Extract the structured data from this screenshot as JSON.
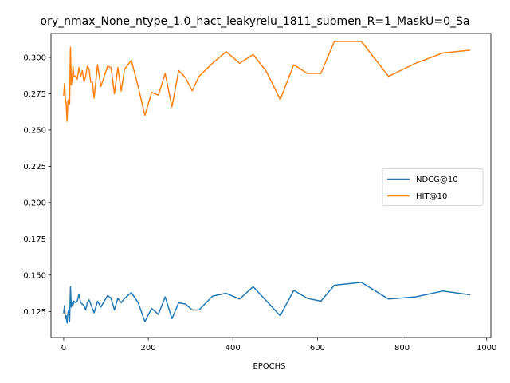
{
  "chart_data": {
    "type": "line",
    "title": "ory_nmax_None_ntype_1.0_hact_leakyrelu_1811_submen_R=1_MaskU=0_Sa",
    "xlabel": "EPOCHS",
    "ylabel": "",
    "xlim": [
      -30,
      1010
    ],
    "ylim": [
      0.107,
      0.3165
    ],
    "xticks": [
      0,
      200,
      400,
      600,
      800,
      1000
    ],
    "yticks": [
      0.125,
      0.15,
      0.175,
      0.2,
      0.225,
      0.25,
      0.275,
      0.3
    ],
    "legend_position": "center-right",
    "grid": false,
    "series": [
      {
        "name": "NDCG@10",
        "color": "#1f77b4",
        "x": [
          0,
          2,
          4,
          6,
          8,
          10,
          12,
          14,
          16,
          18,
          20,
          22,
          24,
          28,
          32,
          36,
          40,
          44,
          48,
          52,
          56,
          60,
          64,
          68,
          72,
          80,
          88,
          96,
          104,
          112,
          120,
          128,
          136,
          144,
          160,
          176,
          192,
          208,
          224,
          240,
          256,
          272,
          288,
          304,
          320,
          352,
          384,
          416,
          448,
          480,
          512,
          544,
          576,
          608,
          640,
          704,
          768,
          832,
          896,
          960
        ],
        "y": [
          0.124,
          0.129,
          0.12,
          0.122,
          0.117,
          0.124,
          0.126,
          0.118,
          0.142,
          0.128,
          0.131,
          0.129,
          0.132,
          0.131,
          0.132,
          0.137,
          0.131,
          0.13,
          0.129,
          0.126,
          0.131,
          0.133,
          0.13,
          0.127,
          0.124,
          0.132,
          0.128,
          0.132,
          0.136,
          0.134,
          0.126,
          0.134,
          0.131,
          0.134,
          0.138,
          0.131,
          0.118,
          0.127,
          0.123,
          0.135,
          0.12,
          0.131,
          0.13,
          0.126,
          0.126,
          0.1355,
          0.1375,
          0.1335,
          0.142,
          0.132,
          0.122,
          0.1395,
          0.134,
          0.132,
          0.143,
          0.145,
          0.1335,
          0.135,
          0.139,
          0.1365
        ]
      },
      {
        "name": "HIT@10",
        "color": "#ff7f0e",
        "x": [
          0,
          2,
          4,
          6,
          8,
          10,
          12,
          14,
          16,
          18,
          20,
          22,
          24,
          28,
          32,
          36,
          40,
          44,
          48,
          52,
          56,
          60,
          64,
          68,
          72,
          80,
          88,
          96,
          104,
          112,
          120,
          128,
          136,
          144,
          160,
          176,
          192,
          208,
          224,
          240,
          256,
          272,
          288,
          304,
          320,
          352,
          384,
          416,
          448,
          480,
          512,
          544,
          576,
          608,
          640,
          704,
          768,
          832,
          896,
          960
        ],
        "y": [
          0.274,
          0.282,
          0.272,
          0.268,
          0.256,
          0.27,
          0.271,
          0.268,
          0.307,
          0.281,
          0.285,
          0.294,
          0.287,
          0.287,
          0.285,
          0.293,
          0.287,
          0.291,
          0.283,
          0.287,
          0.294,
          0.292,
          0.283,
          0.283,
          0.272,
          0.295,
          0.28,
          0.287,
          0.294,
          0.293,
          0.275,
          0.293,
          0.277,
          0.292,
          0.298,
          0.28,
          0.26,
          0.276,
          0.274,
          0.289,
          0.266,
          0.291,
          0.286,
          0.277,
          0.287,
          0.296,
          0.304,
          0.296,
          0.302,
          0.29,
          0.271,
          0.295,
          0.289,
          0.289,
          0.311,
          0.311,
          0.287,
          0.296,
          0.303,
          0.305
        ]
      }
    ]
  }
}
